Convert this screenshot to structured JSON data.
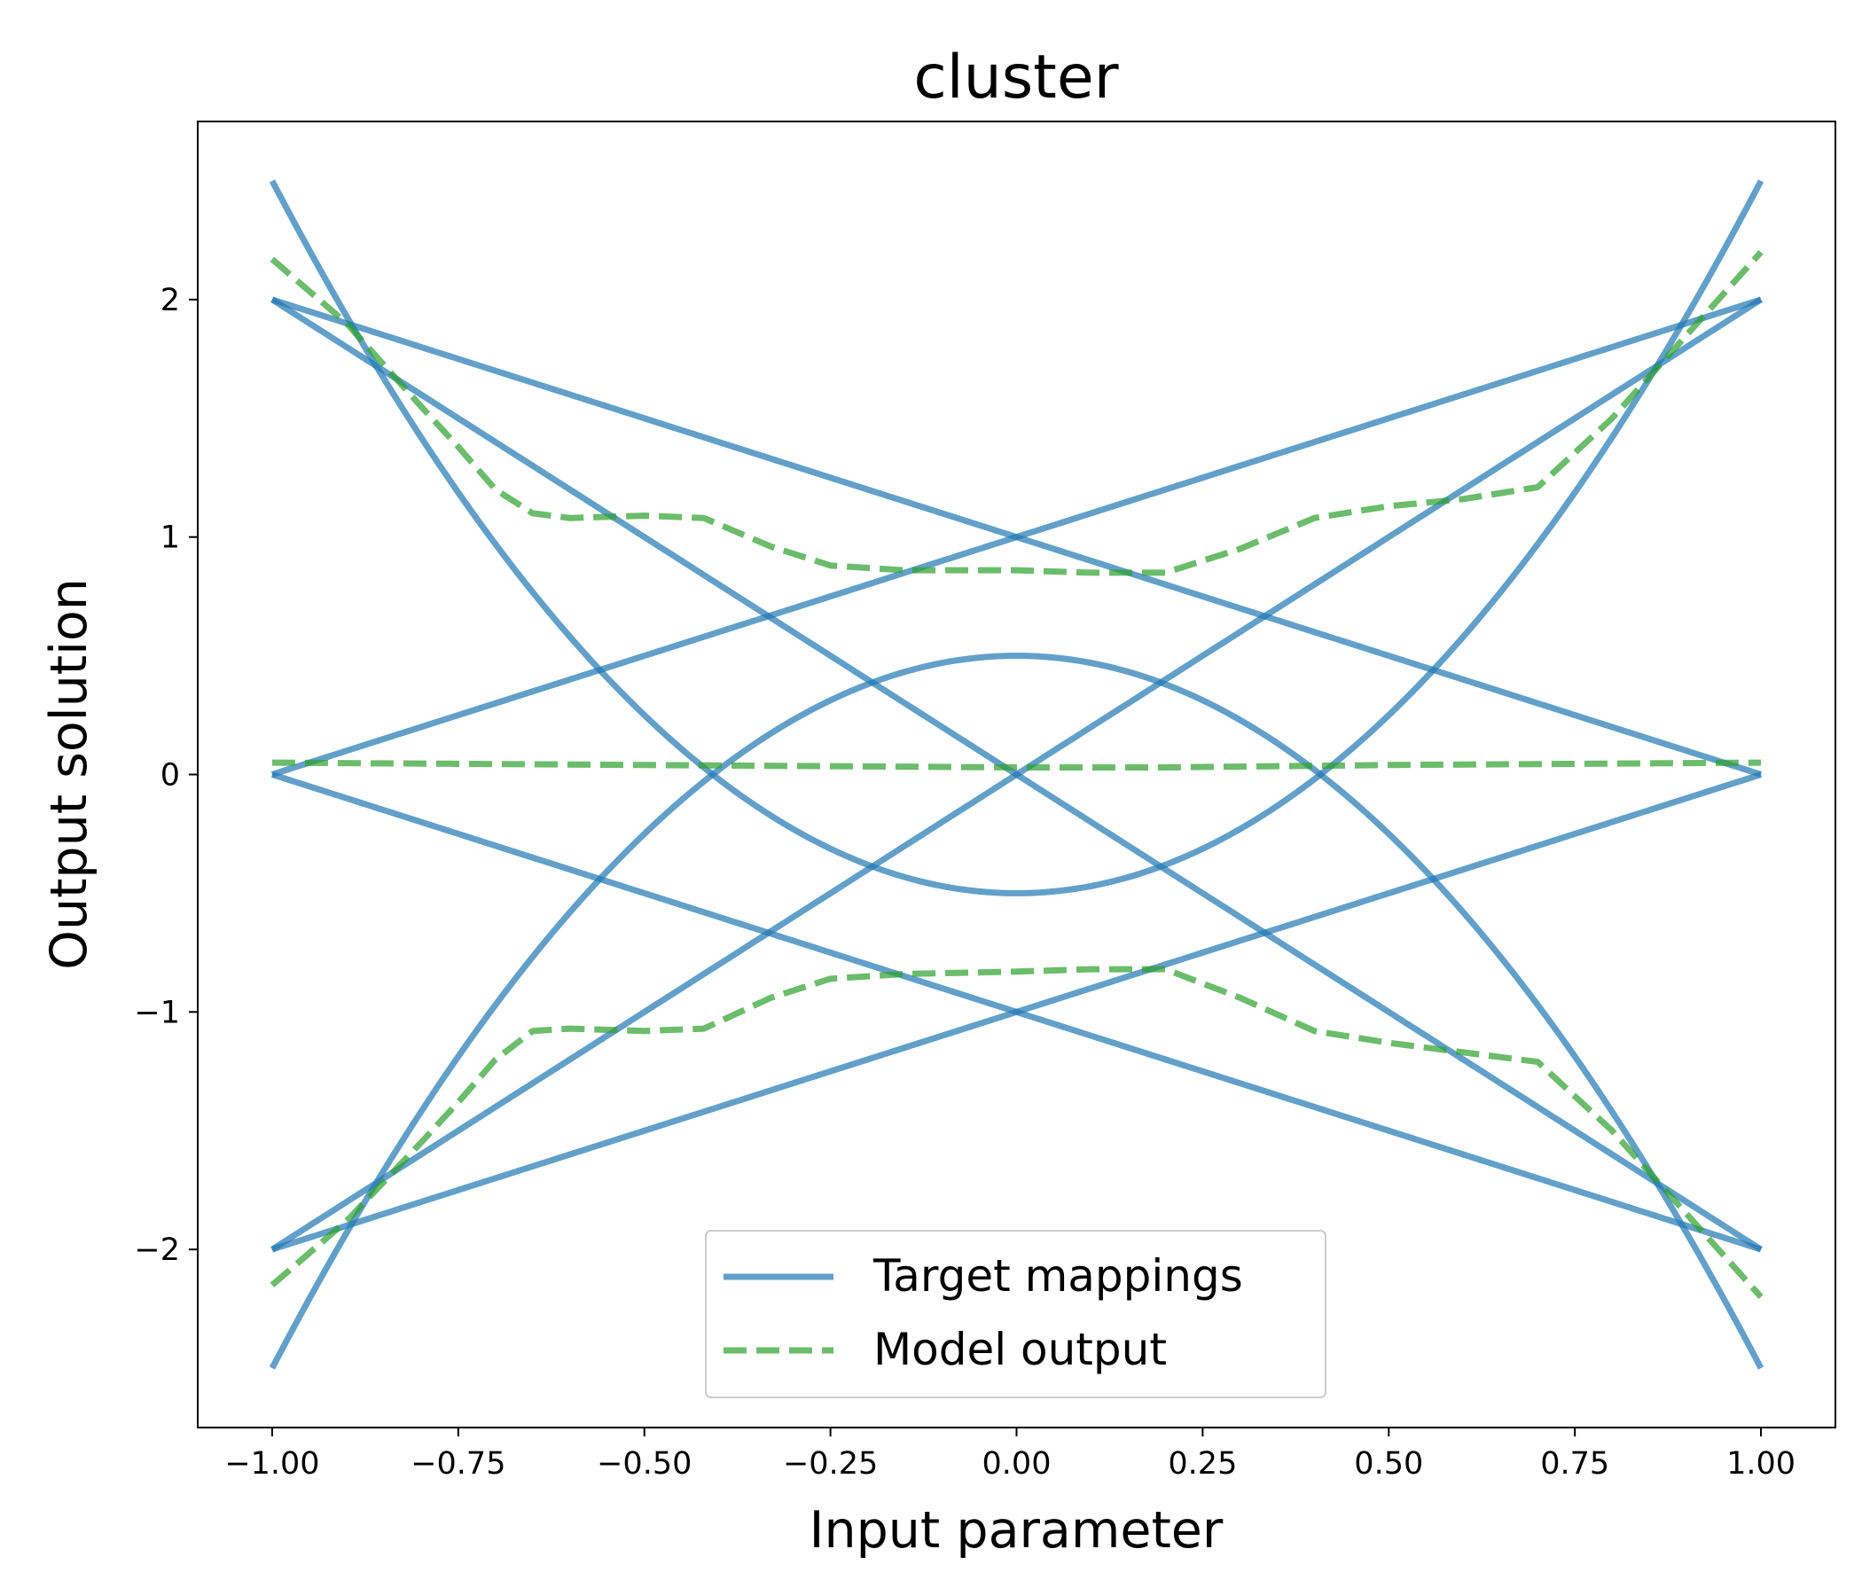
{
  "chart_data": {
    "type": "line",
    "title": "cluster",
    "xlabel": "Input parameter",
    "ylabel": "Output solution",
    "xlim": [
      -1.1,
      1.1
    ],
    "ylim": [
      -2.75,
      2.75
    ],
    "grid": false,
    "legend_position": "bottom-center",
    "xticks": [
      -1.0,
      -0.75,
      -0.5,
      -0.25,
      0.0,
      0.25,
      0.5,
      0.75,
      1.0
    ],
    "xtick_labels": [
      "−1.00",
      "−0.75",
      "−0.50",
      "−0.25",
      "0.00",
      "0.25",
      "0.50",
      "0.75",
      "1.00"
    ],
    "yticks": [
      -2,
      -1,
      0,
      1,
      2
    ],
    "ytick_labels": [
      "−2",
      "−1",
      "0",
      "1",
      "2"
    ],
    "colors": {
      "target": "#1f77b4",
      "model": "#2ca02c"
    },
    "legend": [
      {
        "label": "Target mappings",
        "style": "solid",
        "color": "#1f77b4"
      },
      {
        "label": "Model output",
        "style": "dashed",
        "color": "#2ca02c"
      }
    ],
    "target_functions": [
      {
        "kind": "quadratic",
        "a": 3.0,
        "c": -0.5
      },
      {
        "kind": "quadratic",
        "a": -3.0,
        "c": 0.5
      },
      {
        "kind": "linear",
        "m": 2.0,
        "b": 0.0
      },
      {
        "kind": "linear",
        "m": -2.0,
        "b": 0.0
      },
      {
        "kind": "linear",
        "m": 1.0,
        "b": 1.0
      },
      {
        "kind": "linear",
        "m": -1.0,
        "b": 1.0
      },
      {
        "kind": "linear",
        "m": 1.0,
        "b": -1.0
      },
      {
        "kind": "linear",
        "m": -1.0,
        "b": -1.0
      }
    ],
    "model_series": [
      {
        "x": [
          -1.0,
          -0.9,
          -0.8,
          -0.75,
          -0.7,
          -0.65,
          -0.6,
          -0.5,
          -0.42,
          -0.33,
          -0.25,
          -0.15,
          0.0,
          0.1,
          0.2,
          0.3,
          0.4,
          0.5,
          0.6,
          0.7,
          0.8,
          0.9,
          1.0
        ],
        "y": [
          2.17,
          1.9,
          1.55,
          1.38,
          1.2,
          1.1,
          1.08,
          1.09,
          1.08,
          0.96,
          0.88,
          0.86,
          0.86,
          0.85,
          0.85,
          0.95,
          1.08,
          1.13,
          1.16,
          1.21,
          1.5,
          1.85,
          2.2
        ]
      },
      {
        "x": [
          -1.0,
          -0.5,
          0.0,
          0.2,
          0.5,
          1.0
        ],
        "y": [
          0.05,
          0.04,
          0.03,
          0.03,
          0.04,
          0.05
        ]
      },
      {
        "x": [
          -1.0,
          -0.9,
          -0.8,
          -0.75,
          -0.7,
          -0.65,
          -0.6,
          -0.5,
          -0.42,
          -0.33,
          -0.25,
          -0.15,
          0.0,
          0.1,
          0.2,
          0.3,
          0.4,
          0.5,
          0.6,
          0.7,
          0.8,
          0.9,
          1.0
        ],
        "y": [
          -2.15,
          -1.88,
          -1.55,
          -1.38,
          -1.2,
          -1.08,
          -1.07,
          -1.08,
          -1.07,
          -0.94,
          -0.86,
          -0.84,
          -0.83,
          -0.82,
          -0.82,
          -0.94,
          -1.08,
          -1.13,
          -1.17,
          -1.21,
          -1.5,
          -1.85,
          -2.2
        ]
      }
    ]
  }
}
